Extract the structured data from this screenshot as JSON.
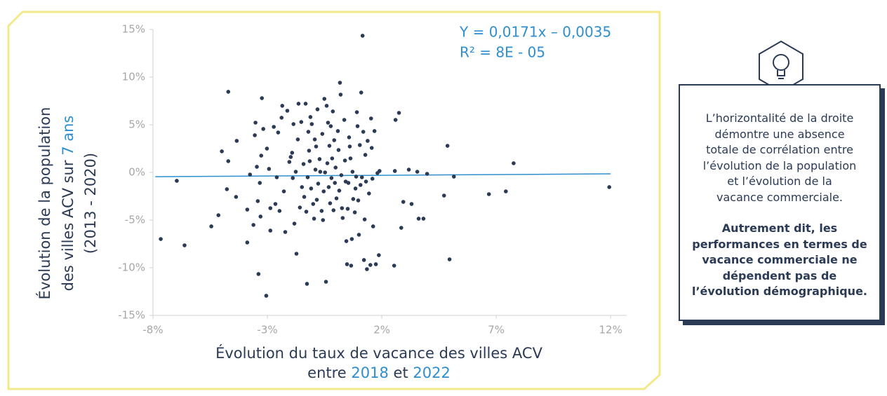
{
  "chart_data": {
    "type": "scatter",
    "equation": "Y = 0,0171x – 0,0035",
    "r_squared": "R² = 8E - 05",
    "y_label": {
      "lines": [
        "Évolution de la population",
        "des villes ACV sur",
        "(2013 - 2020)"
      ],
      "highlight": "7 ans"
    },
    "x_label": {
      "line1": "Évolution du taux de vacance des villes ACV",
      "words": [
        "entre",
        "2018",
        "et",
        "2022"
      ]
    },
    "xlim": [
      -8,
      12.7
    ],
    "ylim": [
      -15,
      15
    ],
    "xticks": [
      {
        "value": -8,
        "label": "-8%"
      },
      {
        "value": -3,
        "label": "-3%"
      },
      {
        "value": 2,
        "label": "2%"
      },
      {
        "value": 7,
        "label": "7%"
      },
      {
        "value": 12,
        "label": "12%"
      }
    ],
    "yticks": [
      {
        "value": 15,
        "label": "15%"
      },
      {
        "value": 10,
        "label": "10%"
      },
      {
        "value": 5,
        "label": "5%"
      },
      {
        "value": 0,
        "label": "0%"
      },
      {
        "value": -5,
        "label": "-5%"
      },
      {
        "value": -10,
        "label": "-10%"
      },
      {
        "value": -15,
        "label": "-15%"
      }
    ],
    "color": "#2b3a55",
    "trendline": {
      "color": "#2f8fce",
      "x": [
        -7.9,
        12
      ],
      "values": [
        -0.45,
        -0.15
      ]
    },
    "x": [
      -7.66,
      -6.96,
      -6.62,
      -5.45,
      -5.14,
      -4.99,
      -4.77,
      -4.71,
      -4.71,
      -4.34,
      -4.37,
      -3.88,
      -3.88,
      -3.76,
      -3.61,
      -3.55,
      -3.52,
      -3.46,
      -3.42,
      -3.39,
      -3.27,
      -3.24,
      -3.18,
      -3.33,
      -3.3,
      -3.05,
      -3.02,
      -2.93,
      -2.87,
      -2.87,
      -2.72,
      -2.65,
      -2.59,
      -2.53,
      -2.47,
      -2.38,
      -2.35,
      -2.28,
      -2.22,
      -2.13,
      -2.04,
      -1.98,
      -1.92,
      -1.89,
      -1.86,
      -1.82,
      -1.76,
      -1.73,
      -1.67,
      -1.64,
      -1.58,
      -1.52,
      -1.49,
      -1.42,
      -1.39,
      -1.33,
      -1.3,
      -1.27,
      -1.24,
      -1.21,
      -1.18,
      -1.15,
      -1.12,
      -1.09,
      -1.06,
      -1.0,
      -0.96,
      -0.93,
      -0.9,
      -0.87,
      -0.84,
      -0.81,
      -0.78,
      -0.72,
      -0.69,
      -0.63,
      -0.6,
      -0.57,
      -0.54,
      -0.51,
      -0.48,
      -0.44,
      -0.41,
      -0.38,
      -0.35,
      -0.32,
      -0.29,
      -0.26,
      -0.23,
      -0.2,
      -0.17,
      -0.14,
      -0.11,
      -0.08,
      -0.05,
      -0.02,
      0.02,
      0.08,
      0.11,
      0.14,
      0.17,
      0.2,
      0.23,
      0.26,
      0.29,
      0.36,
      0.39,
      0.42,
      0.45,
      0.48,
      0.51,
      0.54,
      0.57,
      0.6,
      0.63,
      0.66,
      0.69,
      0.72,
      0.75,
      0.82,
      0.85,
      0.88,
      0.91,
      0.94,
      0.97,
      1.0,
      1.04,
      1.07,
      1.1,
      1.13,
      1.16,
      1.19,
      1.22,
      1.25,
      1.28,
      1.31,
      1.35,
      1.38,
      1.44,
      1.5,
      1.53,
      1.56,
      1.59,
      1.62,
      1.68,
      1.74,
      1.81,
      1.87,
      1.9,
      2.54,
      2.57,
      2.6,
      2.75,
      2.85,
      2.94,
      3.18,
      3.3,
      3.55,
      3.61,
      3.82,
      3.98,
      4.72,
      4.87,
      4.96,
      5.15,
      6.68,
      7.42,
      7.76,
      11.94
    ],
    "values": [
      -6.99,
      -0.88,
      -7.65,
      -5.66,
      -4.49,
      2.21,
      -1.76,
      8.46,
      1.18,
      3.31,
      -2.57,
      -7.35,
      -3.9,
      -0.22,
      -5.51,
      3.9,
      5.22,
      0.59,
      -3.01,
      -10.66,
      1.76,
      7.79,
      4.56,
      -1.1,
      -4.63,
      -12.94,
      2.5,
      0.37,
      -6.1,
      -3.75,
      4.78,
      -3.31,
      -0.51,
      4.19,
      -4.04,
      5.74,
      6.99,
      -1.99,
      -6.25,
      6.47,
      1.1,
      1.62,
      2.06,
      -0.59,
      5.07,
      -5.37,
      0.07,
      -8.53,
      3.46,
      7.21,
      -3.68,
      5.29,
      -1.54,
      0.88,
      -2.57,
      7.21,
      -4.12,
      -11.69,
      -0.51,
      4.26,
      2.28,
      1.18,
      5.81,
      -1.69,
      5.07,
      -3.31,
      -4.85,
      3.46,
      0.29,
      2.72,
      -2.87,
      6.62,
      -1.18,
      1.4,
      0.07,
      -4.04,
      4.04,
      -5.0,
      -1.99,
      7.72,
      0.0,
      -11.47,
      6.99,
      0.96,
      5.22,
      -1.54,
      2.79,
      -3.24,
      4.85,
      -0.59,
      1.47,
      6.4,
      -3.97,
      3.38,
      -1.1,
      0.51,
      -2.72,
      4.34,
      2.35,
      -1.91,
      9.41,
      8.16,
      -0.29,
      -3.75,
      -4.78,
      5.51,
      1.25,
      -0.96,
      -7.21,
      -9.63,
      -3.82,
      -1.1,
      3.68,
      2.72,
      1.47,
      -9.78,
      -6.99,
      0.07,
      -2.79,
      -4.19,
      -1.69,
      -0.44,
      6.32,
      4.85,
      -2.94,
      -6.54,
      2.87,
      -1.32,
      8.38,
      -0.51,
      14.34,
      4.26,
      -9.19,
      -4.93,
      1.84,
      -0.96,
      -10.15,
      3.31,
      -2.21,
      -9.71,
      5.66,
      2.57,
      -0.66,
      -5.66,
      4.34,
      -9.63,
      -0.07,
      -8.68,
      0.15,
      -9.78,
      0.15,
      5.51,
      6.25,
      -5.81,
      -3.09,
      0.29,
      -3.31,
      0.07,
      -4.85,
      -4.85,
      -0.15,
      -2.43,
      2.79,
      -9.12,
      -0.44,
      -2.28,
      -1.99,
      0.96,
      -1.54
    ]
  },
  "note": {
    "lines": [
      "L’horizontalité de la droite",
      "démontre une absence",
      "totale de corrélation entre",
      "l’évolution de la population",
      "et l’évolution de la",
      "vacance commerciale."
    ],
    "emphasis": [
      "Autrement dit, les",
      "performances en termes de",
      "vacance commerciale ne",
      "dépendent pas de",
      "l’évolution démographique."
    ]
  }
}
